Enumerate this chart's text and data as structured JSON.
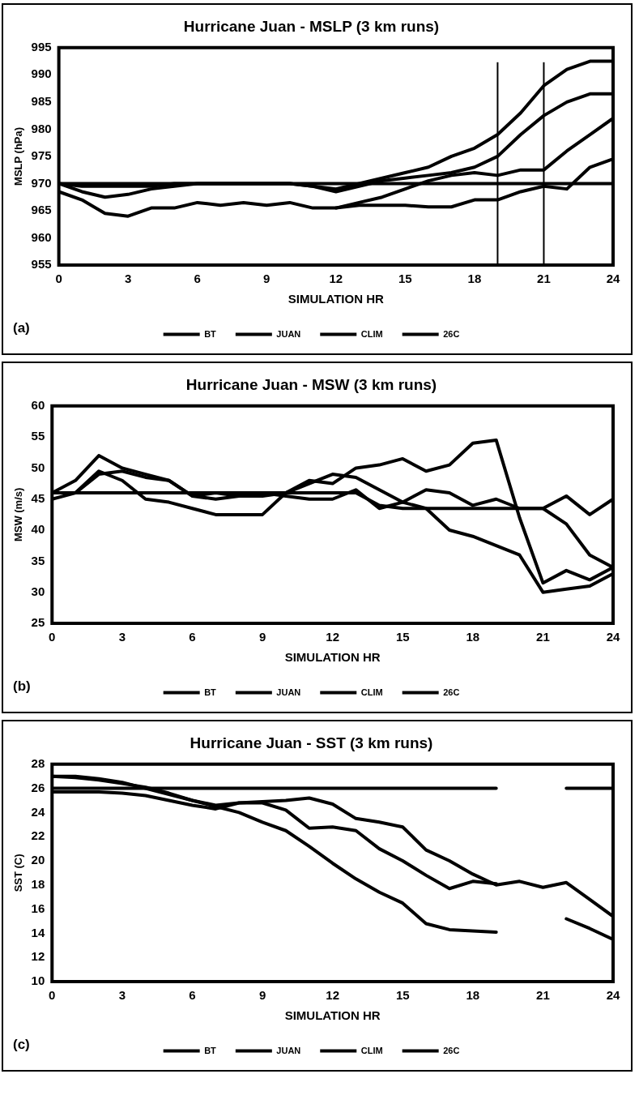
{
  "chart_data": [
    {
      "type": "line",
      "title": "Hurricane Juan - MSLP (3 km runs)",
      "xlabel": "SIMULATION HR",
      "ylabel": "MSLP (hPa)",
      "x": [
        0,
        1,
        2,
        3,
        4,
        5,
        6,
        7,
        8,
        9,
        10,
        11,
        12,
        13,
        14,
        15,
        16,
        17,
        18,
        19,
        20,
        21,
        22,
        23,
        24
      ],
      "xlim": [
        0,
        24
      ],
      "xticks": [
        0,
        3,
        6,
        9,
        12,
        15,
        18,
        21,
        24
      ],
      "ylim": [
        955,
        995
      ],
      "yticks": [
        955,
        960,
        965,
        970,
        975,
        980,
        985,
        990,
        995
      ],
      "grid": false,
      "legend": "bottom",
      "marker": "none",
      "line_style": "solid",
      "annotations": [
        "(a)"
      ],
      "series": [
        {
          "name": "BT",
          "color": "#000000",
          "values": [
            970,
            970,
            970,
            970,
            970,
            970,
            970,
            970,
            970,
            970,
            970,
            970,
            970,
            970,
            970,
            970,
            970,
            970,
            970,
            970,
            970,
            970,
            970,
            970,
            970
          ]
        },
        {
          "name": "JUAN",
          "color": "#000000",
          "values": [
            970,
            969.5,
            969.5,
            969.5,
            969.5,
            970,
            970,
            970,
            970,
            970,
            970,
            969.5,
            969,
            970,
            971,
            972,
            973,
            975,
            976.5,
            979,
            983,
            988,
            991,
            992.5,
            992.5
          ]
        },
        {
          "name": "CLIM",
          "color": "#000000",
          "values": [
            970,
            968.5,
            967.5,
            968,
            969,
            969.5,
            970,
            970,
            970,
            970,
            970,
            969.5,
            968.5,
            969.5,
            970.5,
            971,
            971.5,
            972,
            973,
            975,
            979,
            982.5,
            985,
            986.5,
            986.5
          ]
        },
        {
          "name": "26C",
          "color": "#000000",
          "values": [
            968.5,
            967,
            964.5,
            964,
            965.5,
            965.5,
            966.5,
            966,
            966.5,
            966,
            966.5,
            965.5,
            965.5,
            966.5,
            967.5,
            969,
            970.5,
            971.5,
            972,
            971.5,
            972.5,
            972.5,
            976,
            979,
            982
          ]
        },
        {
          "color": "#000000",
          "values": [
            null,
            null,
            null,
            null,
            null,
            null,
            null,
            null,
            null,
            null,
            null,
            null,
            965.5,
            966,
            966,
            966,
            965.7,
            965.7,
            967,
            967,
            968.5,
            969.5,
            969,
            973,
            974.5
          ]
        }
      ],
      "ref_lines": [
        {
          "axis": "x",
          "value": 19,
          "color": "#000000"
        },
        {
          "axis": "x",
          "value": 21,
          "color": "#000000"
        }
      ]
    },
    {
      "type": "line",
      "title": "Hurricane Juan - MSW (3 km runs)",
      "xlabel": "SIMULATION HR",
      "ylabel": "MSW (m/s)",
      "x": [
        0,
        1,
        2,
        3,
        4,
        5,
        6,
        7,
        8,
        9,
        10,
        11,
        12,
        13,
        14,
        15,
        16,
        17,
        18,
        19,
        20,
        21,
        22,
        23,
        24
      ],
      "xlim": [
        0,
        24
      ],
      "xticks": [
        0,
        3,
        6,
        9,
        12,
        15,
        18,
        21,
        24
      ],
      "ylim": [
        25,
        60
      ],
      "yticks": [
        25,
        30,
        35,
        40,
        45,
        50,
        55,
        60
      ],
      "grid": false,
      "legend": "bottom",
      "marker": "none",
      "line_style": "solid",
      "annotations": [
        "(b)"
      ],
      "series": [
        {
          "name": "BT",
          "color": "#000000",
          "values": [
            46,
            46,
            46,
            46,
            46,
            46,
            46,
            46,
            46,
            46,
            46,
            46,
            46,
            46,
            44,
            43.5,
            43.5,
            43.5,
            43.5,
            43.5,
            43.5,
            43.5,
            45.5,
            42.5,
            45
          ]
        },
        {
          "name": "JUAN",
          "color": "#000000",
          "values": [
            46,
            48,
            52,
            50,
            49,
            48,
            45.5,
            45,
            45.5,
            45.5,
            46,
            48,
            47.5,
            50,
            50.5,
            51.5,
            49.5,
            50.5,
            54,
            54.5,
            42,
            31.5,
            33.5,
            32,
            34
          ]
        },
        {
          "name": "CLIM",
          "color": "#000000",
          "values": [
            45,
            46,
            49.5,
            48,
            45,
            44.5,
            43.5,
            42.5,
            42.5,
            42.5,
            46,
            47.5,
            49,
            48.5,
            46.5,
            44.5,
            43.5,
            40,
            39,
            37.5,
            36,
            30,
            30.5,
            31,
            33
          ]
        },
        {
          "name": "26C",
          "color": "#000000",
          "values": [
            46,
            46,
            49,
            49.5,
            48.5,
            48,
            45.5,
            46,
            45.5,
            46,
            45.5,
            45,
            45,
            46.5,
            43.5,
            44.5,
            46.5,
            46,
            44,
            45,
            43.5,
            43.5,
            41,
            36,
            34
          ]
        }
      ]
    },
    {
      "type": "line",
      "title": "Hurricane Juan - SST (3 km runs)",
      "xlabel": "SIMULATION HR",
      "ylabel": "SST (C)",
      "x": [
        0,
        1,
        2,
        3,
        4,
        5,
        6,
        7,
        8,
        9,
        10,
        11,
        12,
        13,
        14,
        15,
        16,
        17,
        18,
        19,
        20,
        21,
        22,
        23,
        24
      ],
      "xlim": [
        0,
        24
      ],
      "xticks": [
        0,
        3,
        6,
        9,
        12,
        15,
        18,
        21,
        24
      ],
      "ylim": [
        10,
        28
      ],
      "yticks": [
        10,
        12,
        14,
        16,
        18,
        20,
        22,
        24,
        26,
        28
      ],
      "grid": false,
      "legend": "bottom",
      "marker": "none",
      "line_style": "solid",
      "annotations": [
        "(c)"
      ],
      "series": [
        {
          "name": "BT",
          "color": "#000000",
          "values": [
            26,
            26,
            26,
            26,
            26,
            26,
            26,
            26,
            26,
            26,
            26,
            26,
            26,
            26,
            26,
            26,
            26,
            26,
            26,
            26,
            null,
            null,
            26,
            26,
            26
          ]
        },
        {
          "name": "JUAN",
          "color": "#000000",
          "values": [
            27,
            26.9,
            26.7,
            26.4,
            26.1,
            25.6,
            25,
            24.6,
            24.8,
            24.8,
            24.2,
            22.7,
            22.8,
            22.5,
            21,
            20,
            18.8,
            17.7,
            18.3,
            18.1,
            null,
            null,
            null,
            null,
            null
          ]
        },
        {
          "name": "CLIM",
          "color": "#000000",
          "values": [
            25.7,
            25.7,
            25.7,
            25.6,
            25.4,
            25,
            24.6,
            24.3,
            24.8,
            24.9,
            25,
            25.2,
            24.7,
            23.5,
            23.2,
            22.8,
            20.9,
            20,
            18.9,
            18,
            18.3,
            17.8,
            18.2,
            16.8,
            15.4
          ]
        },
        {
          "name": "26C",
          "color": "#000000",
          "values": [
            27,
            27,
            26.8,
            26.5,
            26,
            25.5,
            25,
            24.5,
            24,
            23.2,
            22.5,
            21.2,
            19.8,
            18.5,
            17.4,
            16.5,
            14.8,
            14.3,
            14.2,
            14.1,
            null,
            null,
            15.2,
            14.4,
            13.5
          ]
        }
      ]
    }
  ]
}
